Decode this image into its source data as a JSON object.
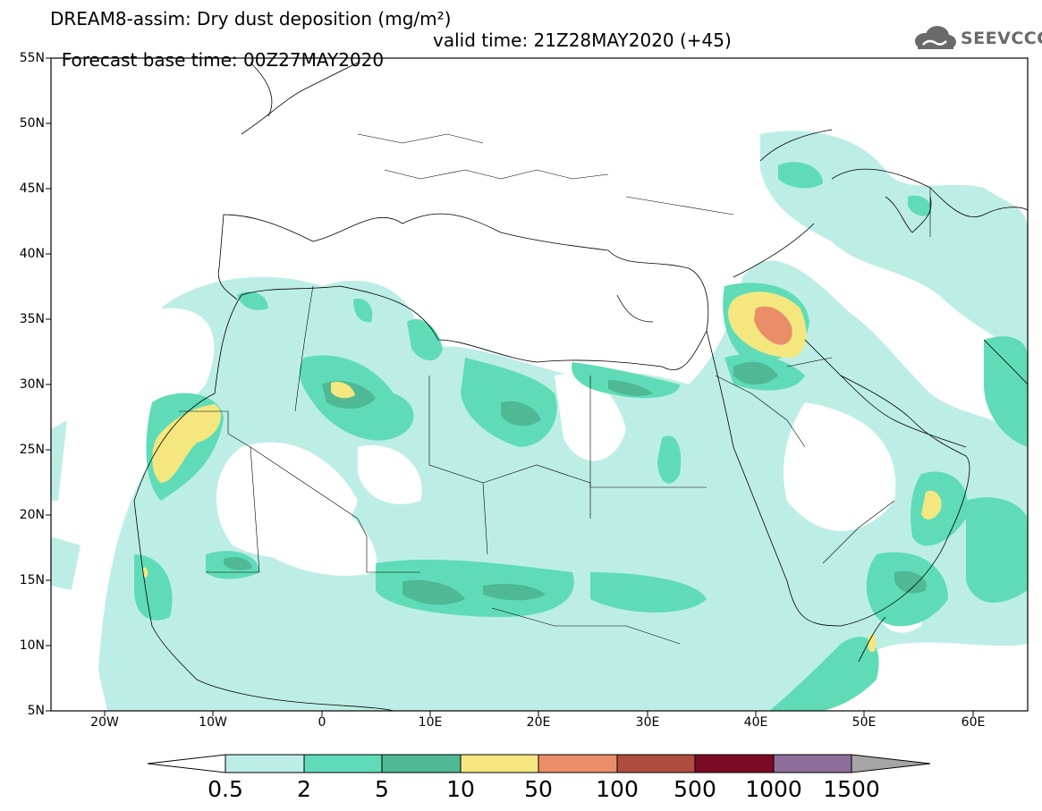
{
  "title": {
    "line1": "DREAM8-assim: Dry dust deposition (mg/m²)",
    "line2_left": "Forecast base time: 00Z27MAY2020",
    "line2_right": "valid time: 21Z28MAY2020 (+45)"
  },
  "logo": {
    "text": "SEEVCCC",
    "icon": "cloud-icon"
  },
  "map": {
    "lat_labels": [
      "55N",
      "50N",
      "45N",
      "40N",
      "35N",
      "30N",
      "25N",
      "20N",
      "15N",
      "10N",
      "5N"
    ],
    "lon_labels": [
      "20W",
      "10W",
      "0",
      "10E",
      "20E",
      "30E",
      "40E",
      "50E",
      "60E"
    ],
    "extent": {
      "lon_min": -25,
      "lon_max": 65,
      "lat_min": 5,
      "lat_max": 55
    },
    "colors": {
      "level_0_5": "#bdeee5",
      "level_2": "#5fdcb7",
      "level_5": "#4fb894",
      "level_10": "#f4e77f",
      "level_50": "#ea8e69",
      "level_100": "#ae4d3e",
      "level_500": "#7b0a25",
      "level_1000": "#8e6e9b",
      "level_1500": "#a5a5a5"
    }
  },
  "colorbar": {
    "labels": [
      "0.5",
      "2",
      "5",
      "10",
      "50",
      "100",
      "500",
      "1000",
      "1500"
    ],
    "colors": [
      "#bdeee5",
      "#5fdcb7",
      "#4fb894",
      "#f4e77f",
      "#ea8e69",
      "#ae4d3e",
      "#7b0a25",
      "#8e6e9b"
    ],
    "over_color": "#a5a5a5",
    "under_color": "#ffffff"
  }
}
